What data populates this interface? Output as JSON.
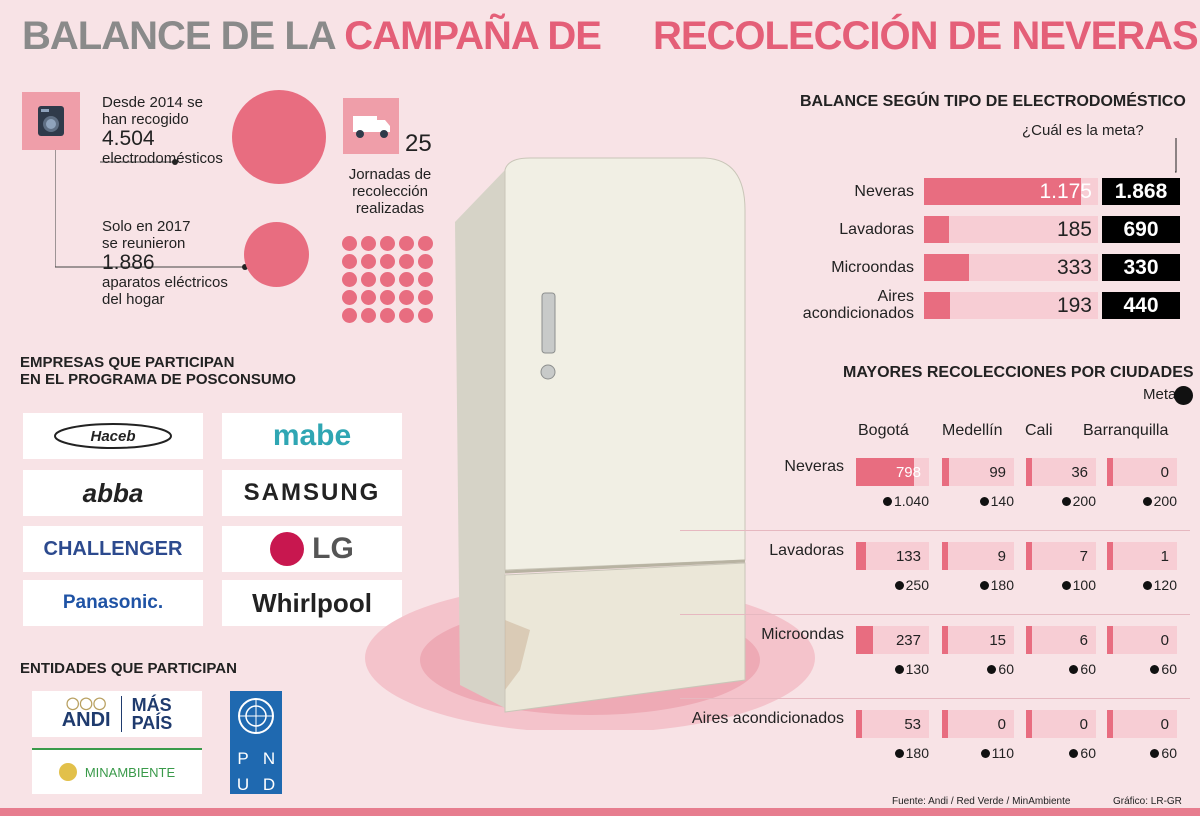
{
  "title": {
    "part1": "BALANCE DE LA ",
    "part2": "CAMPAÑA DE",
    "part3": "RECOLECCIÓN DE NEVERAS"
  },
  "stats": {
    "s1_text1": "Desde 2014 se",
    "s1_text2": "han recogido",
    "s1_number": "4.504",
    "s1_text3": "electrodomésticos",
    "s2_text1": "Solo en 2017",
    "s2_text2": "se reunieron",
    "s2_number": "1.886",
    "s2_text3": "aparatos eléctricos",
    "s2_text4": "del hogar",
    "jornadas_number": "25",
    "jornadas_text1": "Jornadas de",
    "jornadas_text2": "recolección",
    "jornadas_text3": "realizadas",
    "jornadas_count": 25
  },
  "empresas": {
    "heading1": "EMPRESAS QUE PARTICIPAN",
    "heading2": "EN EL PROGRAMA DE POSCONSUMO",
    "logos": [
      "Haceb",
      "mabe",
      "abba",
      "SAMSUNG",
      "CHALLENGER",
      "LG",
      "Panasonic.",
      "Whirlpool"
    ]
  },
  "entidades": {
    "heading": "ENTIDADES QUE PARTICIPAN",
    "andi": "ANDI",
    "maspais1": "MÁS",
    "maspais2": "PAÍS",
    "minambiente": "MINAMBIENTE",
    "pnud": [
      "P",
      "N",
      "U",
      "D"
    ]
  },
  "colors": {
    "pink": "#e86d80",
    "light_pink": "#f7cdd4",
    "background": "#f8e3e6",
    "title_gray": "#8a8a8a",
    "title_pink": "#e45f78"
  },
  "chart_data": [
    {
      "type": "bar",
      "title": "BALANCE SEGÚN TIPO DE ELECTRODOMÉSTICO",
      "goal_label": "¿Cuál es la meta?",
      "categories": [
        "Neveras",
        "Lavadoras",
        "Microondas",
        "Aires acondicionados"
      ],
      "category_lines": [
        [
          "Neveras"
        ],
        [
          "Lavadoras"
        ],
        [
          "Microondas"
        ],
        [
          "Aires",
          "acondicionados"
        ]
      ],
      "values": [
        1175,
        185,
        333,
        193
      ],
      "value_labels": [
        "1.175",
        "185",
        "333",
        "193"
      ],
      "goals": [
        1868,
        690,
        330,
        440
      ],
      "goal_labels": [
        "1.868",
        "690",
        "330",
        "440"
      ]
    },
    {
      "type": "bar",
      "title": "MAYORES RECOLECCIONES POR CIUDADES",
      "legend_label": "Meta",
      "cities": [
        "Bogotá",
        "Medellín",
        "Cali",
        "Barranquilla"
      ],
      "categories": [
        "Neveras",
        "Lavadoras",
        "Microondas",
        "Aires acondicionados"
      ],
      "values": [
        [
          798,
          99,
          36,
          0
        ],
        [
          133,
          9,
          7,
          1
        ],
        [
          237,
          15,
          6,
          0
        ],
        [
          53,
          0,
          0,
          0
        ]
      ],
      "value_labels": [
        [
          "798",
          "99",
          "36",
          "0"
        ],
        [
          "133",
          "9",
          "7",
          "1"
        ],
        [
          "237",
          "15",
          "6",
          "0"
        ],
        [
          "53",
          "0",
          "0",
          "0"
        ]
      ],
      "goals": [
        [
          1040,
          140,
          200,
          200
        ],
        [
          250,
          180,
          100,
          120
        ],
        [
          130,
          60,
          60,
          60
        ],
        [
          180,
          110,
          60,
          60
        ]
      ],
      "goal_labels": [
        [
          "1.040",
          "140",
          "200",
          "200"
        ],
        [
          "250",
          "180",
          "100",
          "120"
        ],
        [
          "130",
          "60",
          "60",
          "60"
        ],
        [
          "180",
          "110",
          "60",
          "60"
        ]
      ]
    }
  ],
  "footer": {
    "source": "Fuente: Andi / Red Verde / MinAmbiente",
    "credit": "Gráfico: LR-GR"
  }
}
